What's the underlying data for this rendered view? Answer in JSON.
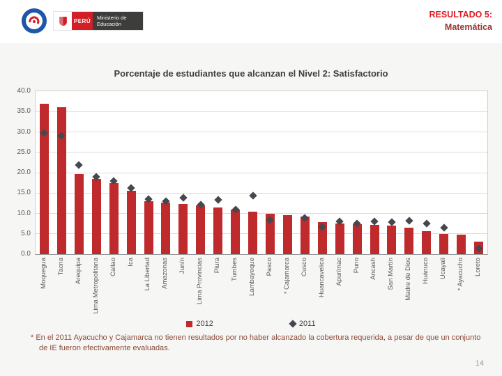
{
  "header": {
    "result_label": "RESULTADO 5:",
    "subject_label": "Matemática",
    "ministry_country": "PERÚ",
    "ministry_name": "Ministerio de Educación"
  },
  "footnote": "* En el 2011 Ayacucho y Cajamarca no tienen resultados por no haber alcanzado la cobertura requerida, a pesar de que un conjunto de IE fueron efectivamente evaluadas.",
  "page_number": "14",
  "colors": {
    "bar_2012": "#bf2a2d",
    "marker_2011": "#47474f",
    "result_red": "#e21b23",
    "subject_red": "#953735",
    "footnote_brown": "#8c4a3a"
  },
  "chart_data": {
    "type": "bar",
    "title": "Porcentaje de estudiantes que alcanzan el Nivel 2: Satisfactorio",
    "categories": [
      "Moquegua",
      "Tacna",
      "Arequipa",
      "Lima Metropolitana",
      "Callao",
      "Ica",
      "La Libertad",
      "Amazonas",
      "Junín",
      "Lima Provincias",
      "Piura",
      "Tumbes",
      "Lambayeque",
      "Pasco",
      "* Cajamarca",
      "Cusco",
      "Huancavelica",
      "Apurímac",
      "Puno",
      "Ancash",
      "San Martín",
      "Madre de Dios",
      "Huánuco",
      "Ucayali",
      "* Ayacucho",
      "Loreto"
    ],
    "series": [
      {
        "name": "2012",
        "type": "bar",
        "color": "#bf2a2d",
        "values": [
          37.0,
          36.0,
          19.6,
          18.5,
          17.5,
          15.6,
          13.0,
          12.6,
          12.3,
          11.9,
          11.5,
          11.0,
          10.5,
          10.0,
          9.6,
          9.2,
          7.8,
          7.5,
          7.4,
          7.2,
          7.0,
          6.5,
          5.6,
          5.0,
          4.8,
          3.0
        ]
      },
      {
        "name": "2011",
        "type": "scatter",
        "marker": "diamond",
        "color": "#47474f",
        "values": [
          29.8,
          29.0,
          21.8,
          18.9,
          17.9,
          16.2,
          13.5,
          13.0,
          13.9,
          12.2,
          13.3,
          11.0,
          14.3,
          8.4,
          null,
          8.9,
          6.6,
          8.0,
          7.6,
          8.0,
          7.8,
          8.2,
          7.5,
          6.5,
          null,
          1.4
        ]
      }
    ],
    "xlabel": "",
    "ylabel": "",
    "ylim": [
      0,
      40
    ],
    "ytick_step": 5,
    "grid": true,
    "legend_position": "bottom"
  }
}
